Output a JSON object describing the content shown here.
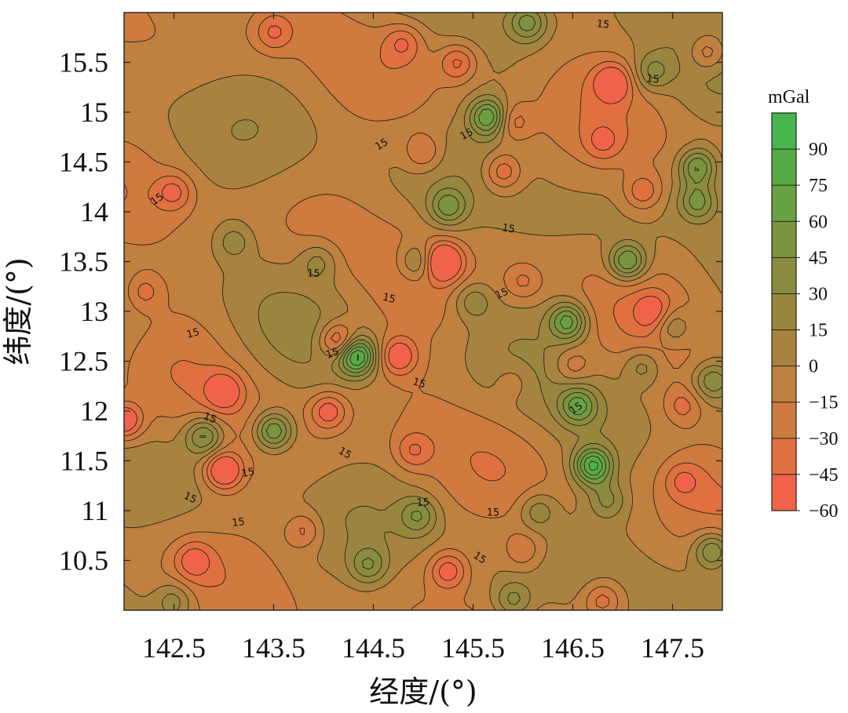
{
  "chart_data": {
    "type": "heatmap",
    "subtype": "filled-contour",
    "xlabel": "经度/(°)",
    "ylabel": "纬度/(°)",
    "xlim": [
      142.0,
      148.0
    ],
    "ylim": [
      10.0,
      16.0
    ],
    "x_ticks": [
      142.5,
      143.5,
      144.5,
      145.5,
      146.5,
      147.5
    ],
    "y_ticks": [
      10.5,
      11,
      11.5,
      12,
      12.5,
      13,
      13.5,
      14,
      14.5,
      15,
      15.5
    ],
    "x_tick_labels": [
      "142.5",
      "143.5",
      "144.5",
      "145.5",
      "146.5",
      "147.5"
    ],
    "y_tick_labels": [
      "10.5",
      "11",
      "11.5",
      "12",
      "12.5",
      "13",
      "13.5",
      "14",
      "14.5",
      "15",
      "15.5"
    ],
    "colorbar": {
      "unit": "mGal",
      "levels": [
        -60,
        -45,
        -30,
        -15,
        0,
        15,
        30,
        45,
        60,
        75,
        90,
        105
      ],
      "tick_values": [
        90,
        75,
        60,
        45,
        30,
        15,
        0,
        -15,
        -30,
        -45,
        -60
      ],
      "tick_labels": [
        "90",
        "75",
        "60",
        "45",
        "30",
        "15",
        "0",
        "−15",
        "−30",
        "−45",
        "−60"
      ],
      "colors": [
        "#f0634a",
        "#e0703f",
        "#cf7a3e",
        "#bf8040",
        "#a8823f",
        "#98863f",
        "#8a8b3f",
        "#7b943f",
        "#6aa044",
        "#58ab47",
        "#47b64c"
      ]
    },
    "contour_label_text": "15",
    "features": [
      {
        "lon": 144.33,
        "lat": 12.55,
        "value": 100
      },
      {
        "lon": 145.65,
        "lat": 14.95,
        "value": 80
      },
      {
        "lon": 147.75,
        "lat": 14.45,
        "value": 70
      },
      {
        "lon": 147.75,
        "lat": 14.1,
        "value": 55
      },
      {
        "lon": 147.05,
        "lat": 13.5,
        "value": 75
      },
      {
        "lon": 146.45,
        "lat": 12.9,
        "value": 75
      },
      {
        "lon": 146.7,
        "lat": 11.45,
        "value": 95
      },
      {
        "lon": 146.55,
        "lat": 12.05,
        "value": 60
      },
      {
        "lon": 143.5,
        "lat": 11.8,
        "value": 75
      },
      {
        "lon": 142.8,
        "lat": 11.75,
        "value": 60
      },
      {
        "lon": 145.25,
        "lat": 14.05,
        "value": 55
      },
      {
        "lon": 144.95,
        "lat": 13.5,
        "value": 45
      },
      {
        "lon": 147.9,
        "lat": 12.3,
        "value": 50
      },
      {
        "lon": 147.9,
        "lat": 10.6,
        "value": 60
      },
      {
        "lon": 146.05,
        "lat": 15.9,
        "value": 55
      },
      {
        "lon": 147.3,
        "lat": 15.4,
        "value": 40
      },
      {
        "lon": 144.95,
        "lat": 10.95,
        "value": 45
      },
      {
        "lon": 144.45,
        "lat": 10.45,
        "value": 45
      },
      {
        "lon": 145.9,
        "lat": 10.1,
        "value": 40
      },
      {
        "lon": 143.1,
        "lat": 13.7,
        "value": 30
      },
      {
        "lon": 143.95,
        "lat": 13.5,
        "value": 30
      },
      {
        "lon": 142.5,
        "lat": 10.1,
        "value": 35
      },
      {
        "lon": 145.5,
        "lat": 13.1,
        "value": 35
      },
      {
        "lon": 147.5,
        "lat": 12.85,
        "value": 40
      },
      {
        "lon": 147.2,
        "lat": 12.45,
        "value": 35
      },
      {
        "lon": 146.15,
        "lat": 11.0,
        "value": 35
      },
      {
        "lon": 146.85,
        "lat": 11.1,
        "value": 35
      },
      {
        "lon": 145.2,
        "lat": 13.5,
        "value": -80
      },
      {
        "lon": 143.0,
        "lat": 11.4,
        "value": -75
      },
      {
        "lon": 144.15,
        "lat": 12.7,
        "value": -65
      },
      {
        "lon": 144.75,
        "lat": 12.55,
        "value": -55
      },
      {
        "lon": 142.0,
        "lat": 11.9,
        "value": -65
      },
      {
        "lon": 143.0,
        "lat": 12.2,
        "value": -50
      },
      {
        "lon": 144.05,
        "lat": 12.0,
        "value": -50
      },
      {
        "lon": 145.8,
        "lat": 14.4,
        "value": -45
      },
      {
        "lon": 146.9,
        "lat": 15.3,
        "value": -55
      },
      {
        "lon": 145.25,
        "lat": 10.4,
        "value": -50
      },
      {
        "lon": 145.35,
        "lat": 15.5,
        "value": -45
      },
      {
        "lon": 142.5,
        "lat": 14.2,
        "value": -40
      },
      {
        "lon": 143.5,
        "lat": 15.8,
        "value": -35
      },
      {
        "lon": 144.8,
        "lat": 15.7,
        "value": -35
      },
      {
        "lon": 147.2,
        "lat": 14.2,
        "value": -40
      },
      {
        "lon": 146.8,
        "lat": 10.1,
        "value": -40
      },
      {
        "lon": 142.7,
        "lat": 10.5,
        "value": -40
      },
      {
        "lon": 147.85,
        "lat": 15.6,
        "value": -40
      },
      {
        "lon": 145.0,
        "lat": 14.6,
        "value": -35
      },
      {
        "lon": 146.8,
        "lat": 14.7,
        "value": -30
      },
      {
        "lon": 147.6,
        "lat": 11.3,
        "value": -30
      },
      {
        "lon": 146.0,
        "lat": 13.3,
        "value": -30
      },
      {
        "lon": 144.9,
        "lat": 11.6,
        "value": -35
      },
      {
        "lon": 146.0,
        "lat": 10.6,
        "value": -30
      },
      {
        "lon": 147.3,
        "lat": 13.0,
        "value": -35
      },
      {
        "lon": 143.8,
        "lat": 10.8,
        "value": -35
      },
      {
        "lon": 142.2,
        "lat": 13.2,
        "value": -30
      },
      {
        "lon": 145.9,
        "lat": 12.3,
        "value": -20
      },
      {
        "lon": 146.5,
        "lat": 12.45,
        "value": -30
      },
      {
        "lon": 147.6,
        "lat": 12.05,
        "value": -30
      },
      {
        "lon": 145.9,
        "lat": 14.9,
        "value": -35
      }
    ]
  }
}
